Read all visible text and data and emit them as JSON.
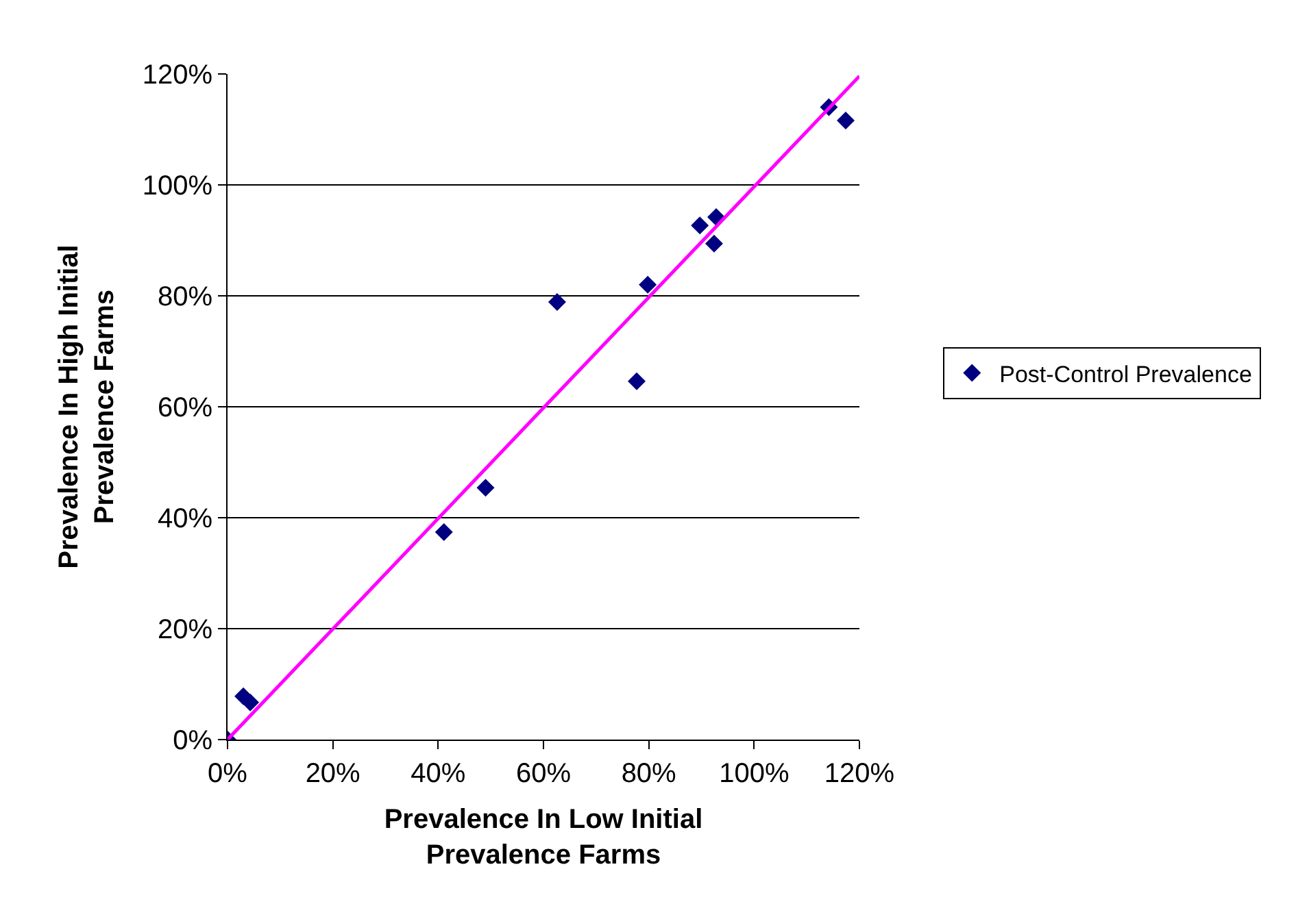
{
  "chart_data": {
    "type": "scatter",
    "xlabel": "Prevalence In Low Initial\nPrevalence Farms",
    "ylabel": "Prevalence In High Initial\nPrevalence Farms",
    "xlim": [
      0,
      120
    ],
    "ylim": [
      0,
      120
    ],
    "xticks": [
      {
        "value": 0,
        "label": "0%"
      },
      {
        "value": 20,
        "label": "20%"
      },
      {
        "value": 40,
        "label": "40%"
      },
      {
        "value": 60,
        "label": "60%"
      },
      {
        "value": 80,
        "label": "80%"
      },
      {
        "value": 100,
        "label": "100%"
      },
      {
        "value": 120,
        "label": "120%"
      }
    ],
    "yticks": [
      {
        "value": 0,
        "label": "0%"
      },
      {
        "value": 20,
        "label": "20%"
      },
      {
        "value": 40,
        "label": "40%"
      },
      {
        "value": 60,
        "label": "60%"
      },
      {
        "value": 80,
        "label": "80%"
      },
      {
        "value": 100,
        "label": "100%"
      },
      {
        "value": 120,
        "label": "120%"
      }
    ],
    "grid": "y",
    "legend": "right",
    "series": [
      {
        "name": "Post-Control Prevalence",
        "color": "#000080",
        "marker": "diamond",
        "x": [
          0,
          3.0,
          4.3,
          41.1,
          49.0,
          62.6,
          77.7,
          79.8,
          89.7,
          92.8,
          92.4,
          114.2,
          117.4
        ],
        "values": [
          0,
          7.8,
          6.7,
          37.4,
          45.4,
          78.9,
          64.6,
          82.0,
          92.7,
          94.2,
          89.4,
          114.0,
          111.6
        ]
      },
      {
        "type": "line",
        "color": "#ff00ff",
        "x": [
          0,
          120
        ],
        "values": [
          0,
          119.6
        ]
      }
    ]
  }
}
